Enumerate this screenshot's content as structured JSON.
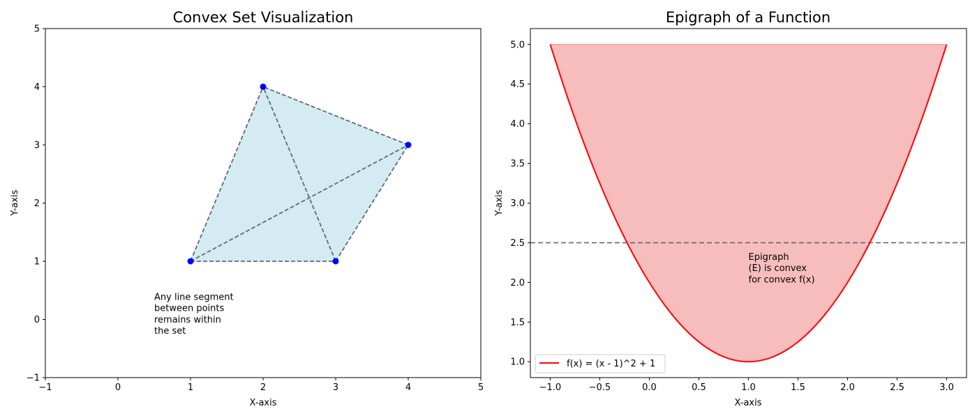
{
  "chart_data": [
    {
      "type": "scatter",
      "title": "Convex Set Visualization",
      "xlabel": "X-axis",
      "ylabel": "Y-axis",
      "xlim": [
        -1,
        5
      ],
      "ylim": [
        -1,
        5
      ],
      "xticks": [
        -1,
        0,
        1,
        2,
        3,
        4,
        5
      ],
      "yticks": [
        -1,
        0,
        1,
        2,
        3,
        4,
        5
      ],
      "xtick_labels": [
        "−1",
        "0",
        "1",
        "2",
        "3",
        "4",
        "5"
      ],
      "ytick_labels": [
        "−1",
        "0",
        "1",
        "2",
        "3",
        "4",
        "5"
      ],
      "points": [
        [
          1,
          1
        ],
        [
          3,
          1
        ],
        [
          4,
          3
        ],
        [
          2,
          4
        ]
      ],
      "polygon_order": [
        [
          1,
          1
        ],
        [
          3,
          1
        ],
        [
          4,
          3
        ],
        [
          2,
          4
        ]
      ],
      "segments": [
        [
          [
            1,
            1
          ],
          [
            3,
            1
          ]
        ],
        [
          [
            1,
            1
          ],
          [
            4,
            3
          ]
        ],
        [
          [
            1,
            1
          ],
          [
            2,
            4
          ]
        ],
        [
          [
            3,
            1
          ],
          [
            4,
            3
          ]
        ],
        [
          [
            3,
            1
          ],
          [
            2,
            4
          ]
        ],
        [
          [
            4,
            3
          ],
          [
            2,
            4
          ]
        ]
      ],
      "annotation": {
        "x": 0.5,
        "y": 0.1,
        "lines": [
          "Any line segment",
          "between points",
          "remains within",
          "the set"
        ]
      },
      "colors": {
        "fill": "#add8e6",
        "points": "#0000ff",
        "segments": "#5f6b73"
      },
      "grid": false
    },
    {
      "type": "line",
      "title": "Epigraph of a Function",
      "xlabel": "X-axis",
      "ylabel": "Y-axis",
      "xlim": [
        -1.2,
        3.2
      ],
      "ylim": [
        0.8,
        5.2
      ],
      "xticks": [
        -1.0,
        -0.5,
        0.0,
        0.5,
        1.0,
        1.5,
        2.0,
        2.5,
        3.0
      ],
      "yticks": [
        1.0,
        1.5,
        2.0,
        2.5,
        3.0,
        3.5,
        4.0,
        4.5,
        5.0
      ],
      "xtick_labels": [
        "−1.0",
        "−0.5",
        "0.0",
        "0.5",
        "1.0",
        "1.5",
        "2.0",
        "2.5",
        "3.0"
      ],
      "ytick_labels": [
        "1.0",
        "1.5",
        "2.0",
        "2.5",
        "3.0",
        "3.5",
        "4.0",
        "4.5",
        "5.0"
      ],
      "series": [
        {
          "name": "f(x) = (x - 1)^2 + 1",
          "x": [
            -1.0,
            -0.8,
            -0.6,
            -0.4,
            -0.2,
            0.0,
            0.2,
            0.4,
            0.6,
            0.8,
            1.0,
            1.2,
            1.4,
            1.6,
            1.8,
            2.0,
            2.2,
            2.4,
            2.6,
            2.8,
            3.0
          ],
          "y": [
            5.0,
            4.24,
            3.56,
            2.96,
            2.44,
            2.0,
            1.64,
            1.36,
            1.16,
            1.04,
            1.0,
            1.04,
            1.16,
            1.36,
            1.64,
            2.0,
            2.44,
            2.96,
            3.56,
            4.24,
            5.0
          ]
        }
      ],
      "fill_between_upper": 5.0,
      "hline": 2.5,
      "annotation": {
        "x": 1.0,
        "y": 2.0,
        "lines": [
          "Epigraph",
          "(E) is convex",
          "for convex f(x)"
        ]
      },
      "legend_position": "lower-left",
      "colors": {
        "line": "#ff0000",
        "fill": "#f08080",
        "hline": "#666666"
      },
      "grid": false
    }
  ]
}
